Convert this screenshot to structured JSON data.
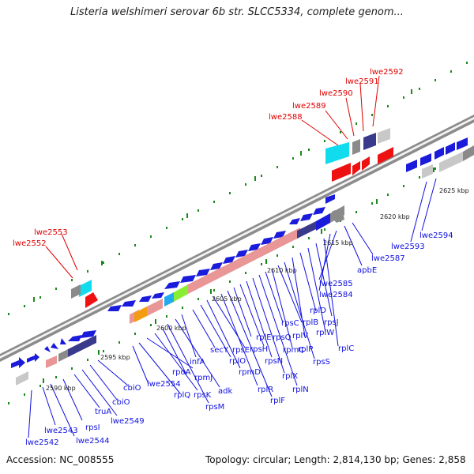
{
  "title": "Listeria welshimeri serovar 6b str. SLCC5334, complete genom...",
  "footer": {
    "accession": "Accession: NC_008555",
    "stats": "Topology: circular; Length: 2,814,130 bp; Genes: 2,858"
  },
  "colors": {
    "backbone": "#8c8c8c",
    "gene_blue": "#1b1bdc",
    "gene_navy": "#3a3a8c",
    "gene_pink": "#e89696",
    "gene_red": "#ee1111",
    "gene_cyan": "#11dcee",
    "gene_grey": "#8a8a8a",
    "gene_lightgrey": "#c8c8c8",
    "gene_orange": "#f39c12",
    "gene_green": "#88ee33",
    "gene_skyblue": "#22aaee",
    "tick_green": "#1a8a1a",
    "label_blue": "#1010e0",
    "label_red": "#e00000"
  },
  "kbp_ticks": [
    "2590 kbp",
    "2595 kbp",
    "2600 kbp",
    "2605 kbp",
    "2610 kbp",
    "2615 kbp",
    "2620 kbp",
    "2625 kbp"
  ],
  "red_labels": [
    "lwe2592",
    "lwe2591",
    "lwe2590",
    "lwe2589",
    "lwe2588",
    "lwe2553",
    "lwe2552"
  ],
  "blue_labels": [
    "apbE",
    "lwe2587",
    "lwe2594",
    "lwe2593",
    "lwe2585",
    "lwe2584",
    "rplD",
    "rplB",
    "rpsJ",
    "rpsC",
    "rplV",
    "rplW",
    "rplC",
    "rplE",
    "rpsQ",
    "rpmC",
    "rplP",
    "rpsS",
    "secY",
    "rpsE",
    "rpsH",
    "rplO",
    "rpsN",
    "rplX",
    "infA",
    "rpmD",
    "rplR",
    "rplN",
    "rpmJ",
    "rplF",
    "rpoA",
    "rpsK",
    "adk",
    "rplQ",
    "rpsM",
    "lwe2554",
    "cbiO",
    "cbiO",
    "truA",
    "lwe2549",
    "rpsI",
    "lwe2543",
    "lwe2544",
    "lwe2542"
  ]
}
